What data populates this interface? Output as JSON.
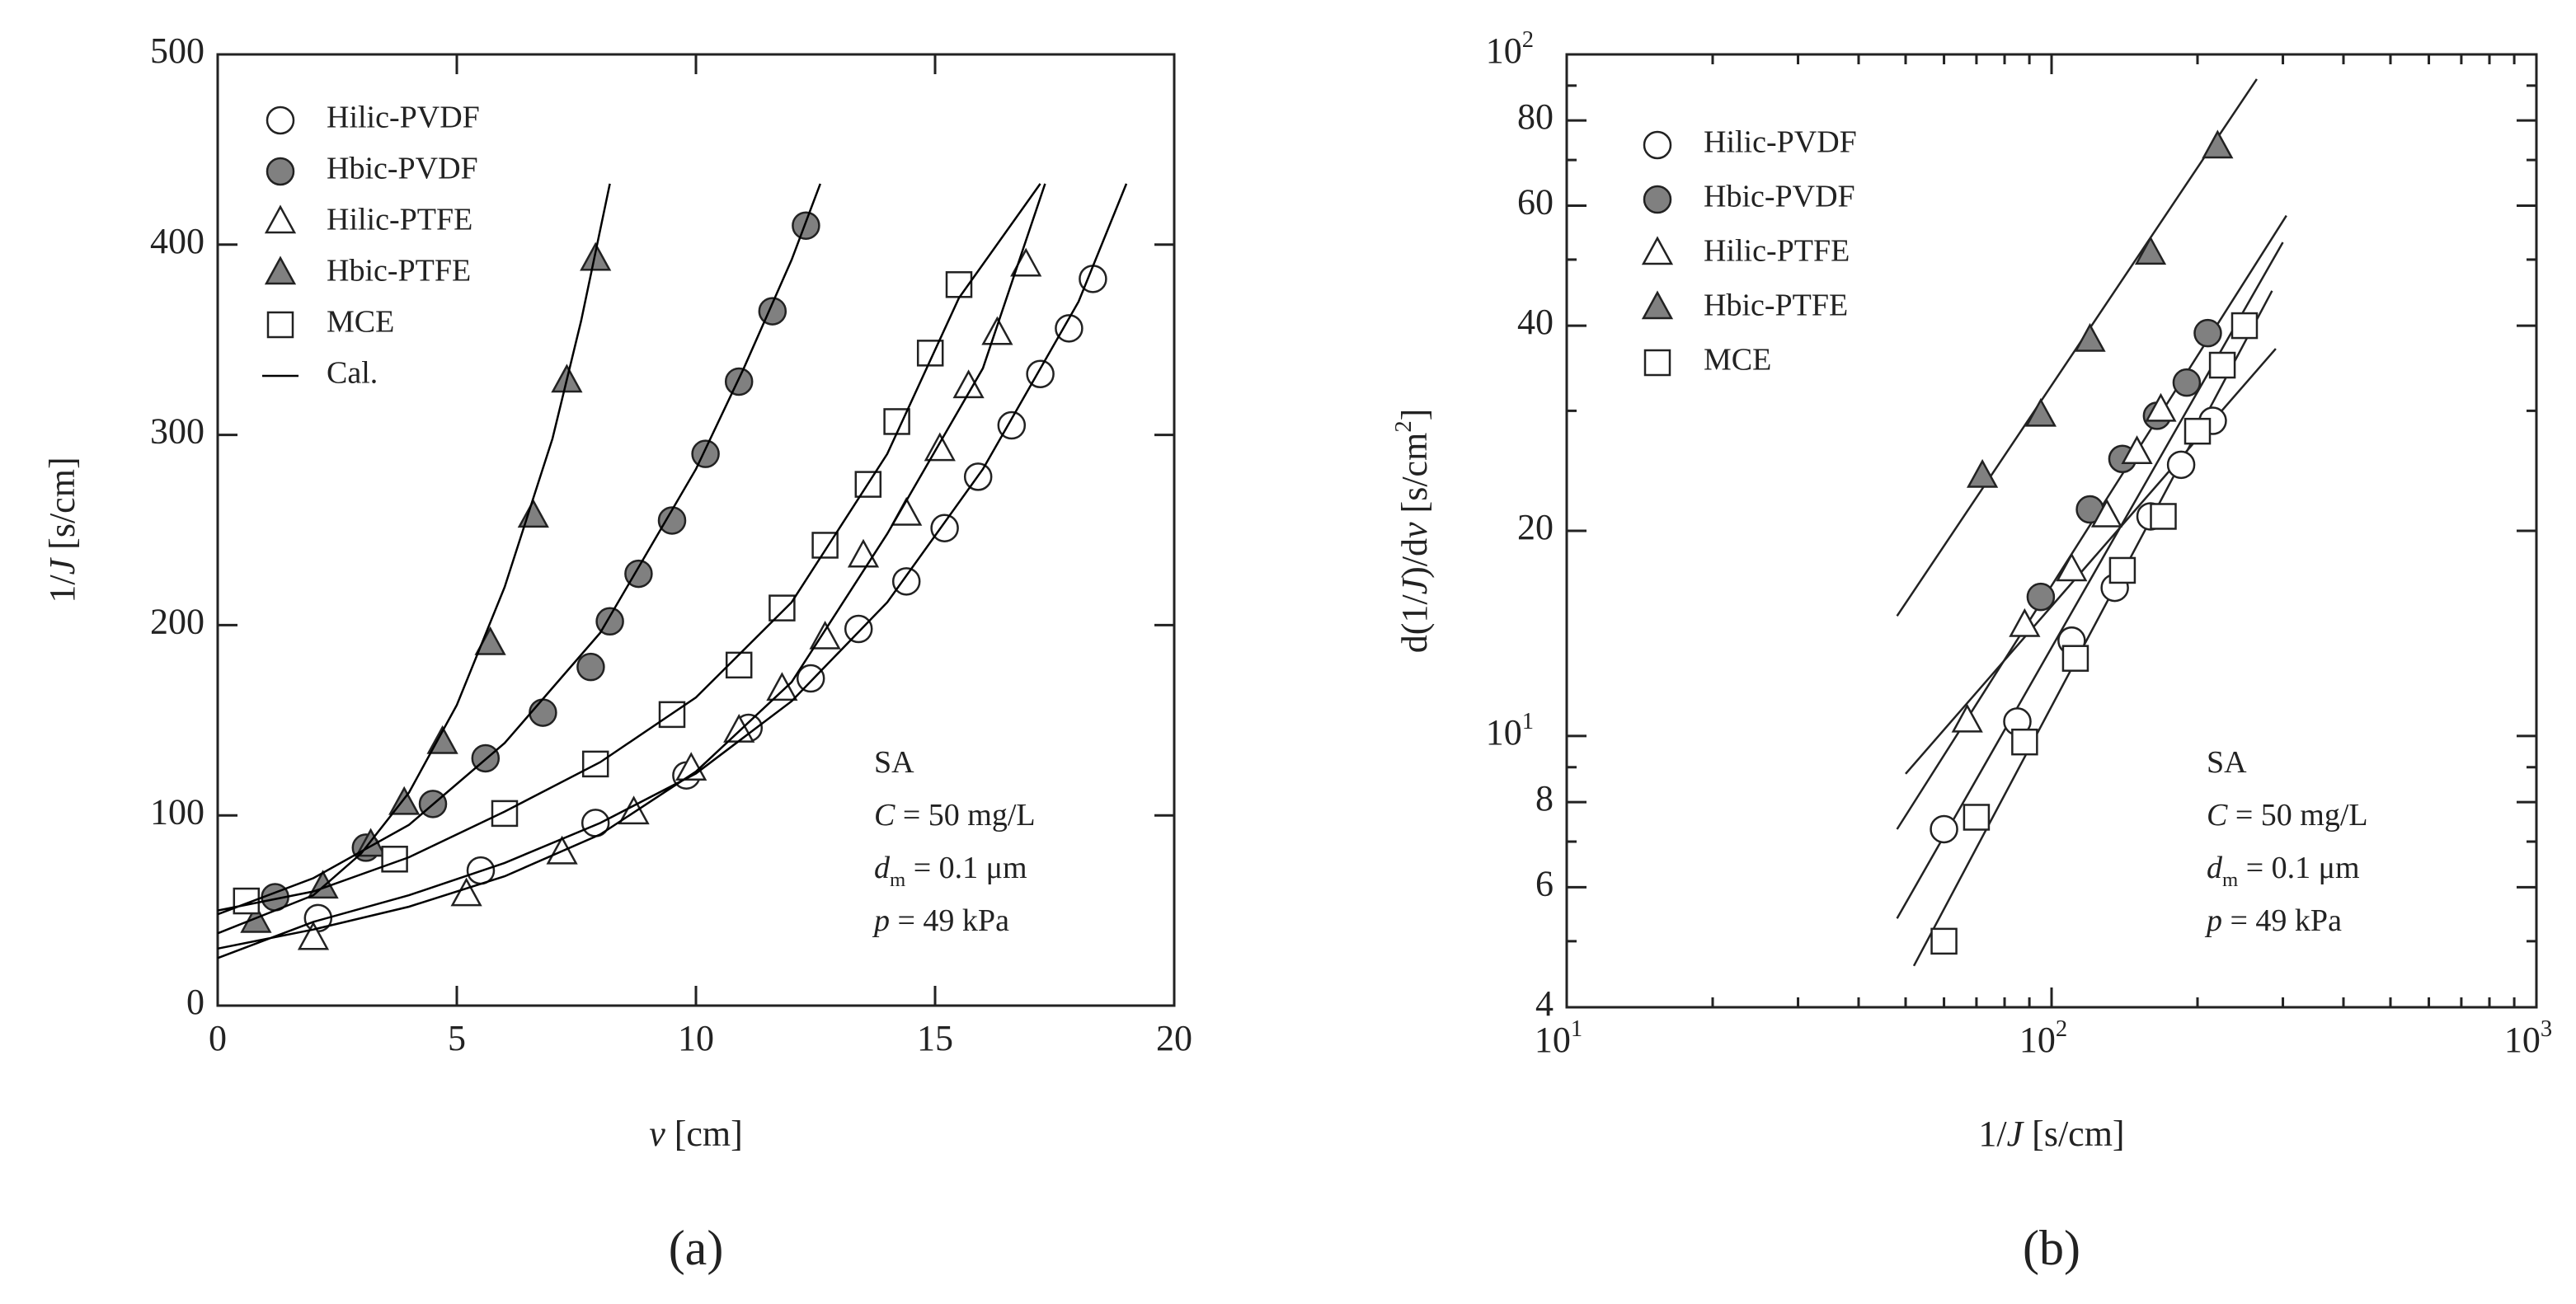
{
  "chart_data": [
    {
      "type": "scatter",
      "caption": "(a)",
      "xlabel": [
        {
          "text": "v",
          "italic": true
        },
        {
          "text": "  [cm]"
        }
      ],
      "ylabel": [
        {
          "text": "1/"
        },
        {
          "text": "J",
          "italic": true
        },
        {
          "text": "  [s/cm]"
        }
      ],
      "xlim": [
        0,
        20
      ],
      "ylim": [
        0,
        500
      ],
      "xticks": [
        0,
        5,
        10,
        15,
        20
      ],
      "yticks": [
        0,
        100,
        200,
        300,
        400,
        500
      ],
      "log": false,
      "legend": "upper left",
      "annotations": [
        [
          {
            "text": "SA"
          }
        ],
        [
          {
            "text": "C",
            "italic": true
          },
          {
            "text": " = 50 mg/L"
          }
        ],
        [
          {
            "text": "d",
            "italic": true
          },
          {
            "text": "m",
            "sub": true
          },
          {
            "text": " = 0.1 μm"
          }
        ],
        [
          {
            "text": "p",
            "italic": true
          },
          {
            "text": " = 49 kPa"
          }
        ]
      ],
      "series": [
        {
          "name": "Hilic-PVDF",
          "marker": "circle",
          "color": "#ffffff",
          "x": [
            2.1,
            5.5,
            7.9,
            9.8,
            11.1,
            12.4,
            13.4,
            14.4,
            15.2,
            15.9,
            16.6,
            17.2,
            17.8,
            18.3
          ],
          "values": [
            46,
            71,
            96,
            121,
            146,
            172,
            198,
            223,
            251,
            278,
            305,
            332,
            356,
            382
          ]
        },
        {
          "name": "Hbic-PVDF",
          "marker": "circle",
          "color": "#808080",
          "x": [
            1.2,
            3.1,
            4.5,
            5.6,
            6.8,
            7.8,
            8.2,
            8.8,
            9.5,
            10.2,
            10.9,
            11.6,
            12.3
          ],
          "values": [
            57,
            83,
            106,
            130,
            154,
            178,
            202,
            227,
            255,
            290,
            328,
            365,
            410
          ]
        },
        {
          "name": "Hilic-PTFE",
          "marker": "triangle",
          "color": "#ffffff",
          "x": [
            2.0,
            5.2,
            7.2,
            8.7,
            9.9,
            10.9,
            11.8,
            12.7,
            13.5,
            14.4,
            15.1,
            15.7,
            16.3,
            16.9
          ],
          "values": [
            35,
            58,
            80,
            101,
            124,
            144,
            166,
            193,
            236,
            258,
            292,
            325,
            353,
            389
          ]
        },
        {
          "name": "Hbic-PTFE",
          "marker": "triangle",
          "color": "#808080",
          "x": [
            0.8,
            2.2,
            3.2,
            3.9,
            4.7,
            5.7,
            6.6,
            7.3,
            7.9
          ],
          "values": [
            44,
            62,
            84,
            106,
            138,
            190,
            257,
            328,
            392
          ]
        },
        {
          "name": "MCE",
          "marker": "square",
          "color": "#ffffff",
          "x": [
            0.6,
            3.7,
            6.0,
            7.9,
            9.5,
            10.9,
            11.8,
            12.7,
            13.6,
            14.2,
            14.9,
            15.5
          ],
          "values": [
            55,
            77,
            101,
            127,
            153,
            179,
            209,
            242,
            274,
            307,
            343,
            379
          ]
        },
        {
          "name": "Cal.",
          "marker": "line",
          "color": "#000000",
          "x": [
            0,
            2,
            4,
            6,
            8,
            10,
            12,
            14,
            16,
            18,
            19,
            null,
            0,
            2,
            4,
            6,
            8,
            10,
            11,
            12,
            12.6,
            null,
            0,
            2,
            4,
            6,
            8,
            10,
            12,
            14,
            16,
            17.3,
            null,
            0,
            2,
            3,
            4,
            5,
            6,
            7,
            7.6,
            8.2,
            null,
            0,
            2,
            4,
            6,
            8,
            10,
            12,
            14,
            15.5,
            17.2
          ],
          "values": [
            25,
            44,
            58,
            75,
            96,
            122,
            160,
            212,
            282,
            370,
            432,
            null,
            48,
            67,
            95,
            138,
            196,
            282,
            335,
            392,
            432,
            null,
            30,
            40,
            52,
            68,
            90,
            123,
            170,
            248,
            335,
            432,
            null,
            38,
            58,
            80,
            112,
            158,
            220,
            298,
            360,
            432,
            null,
            50,
            60,
            78,
            102,
            128,
            162,
            212,
            290,
            372,
            432
          ]
        }
      ]
    },
    {
      "type": "scatter",
      "caption": "(b)",
      "xlabel": [
        {
          "text": "1/"
        },
        {
          "text": "J",
          "italic": true
        },
        {
          "text": "  [s/cm]"
        }
      ],
      "ylabel": [
        {
          "text": "d(1/"
        },
        {
          "text": "J",
          "italic": true
        },
        {
          "text": ")/d"
        },
        {
          "text": "v",
          "italic": true
        },
        {
          "text": "  [s/cm"
        },
        {
          "text": "2",
          "sup": true
        },
        {
          "text": "]"
        }
      ],
      "xlim": [
        10,
        1000
      ],
      "ylim": [
        4,
        100
      ],
      "log": true,
      "legend": "upper left",
      "xticks": [
        {
          "value": 10,
          "label": "10",
          "exponent": "1"
        },
        {
          "value": 100,
          "label": "10",
          "exponent": "2"
        },
        {
          "value": 1000,
          "label": "10",
          "exponent": "3"
        }
      ],
      "xminor": [
        20,
        30,
        40,
        50,
        60,
        70,
        80,
        90,
        200,
        300,
        400,
        500,
        600,
        700,
        800,
        900
      ],
      "yticks": [
        4,
        6,
        8,
        {
          "value": 10,
          "label": "10",
          "exponent": "1"
        },
        20,
        40,
        60,
        80,
        {
          "value": 100,
          "label": "10",
          "exponent": "2"
        }
      ],
      "yminor": [
        5,
        7,
        9,
        30,
        50,
        70,
        90
      ],
      "annotations": [
        [
          {
            "text": "SA"
          }
        ],
        [
          {
            "text": "C",
            "italic": true
          },
          {
            "text": " = 50 mg/L"
          }
        ],
        [
          {
            "text": "d",
            "italic": true
          },
          {
            "text": "m",
            "sub": true
          },
          {
            "text": " = 0.1 μm"
          }
        ],
        [
          {
            "text": "p",
            "italic": true
          },
          {
            "text": " = 49 kPa"
          }
        ]
      ],
      "series": [
        {
          "name": "Hilic-PVDF",
          "marker": "circle",
          "color": "#ffffff",
          "x": [
            60,
            85,
            110,
            135,
            160,
            185,
            215
          ],
          "values": [
            7.3,
            10.5,
            13.8,
            16.5,
            21,
            25,
            29
          ]
        },
        {
          "name": "Hbic-PVDF",
          "marker": "circle",
          "color": "#808080",
          "x": [
            95,
            120,
            140,
            165,
            190,
            210
          ],
          "values": [
            16,
            21.5,
            25.5,
            29.5,
            33,
            39
          ]
        },
        {
          "name": "Hilic-PTFE",
          "marker": "triangle",
          "color": "#ffffff",
          "x": [
            67,
            88,
            110,
            130,
            150,
            168
          ],
          "values": [
            10.5,
            14.5,
            17.5,
            21,
            26,
            30
          ]
        },
        {
          "name": "Hbic-PTFE",
          "marker": "triangle",
          "color": "#808080",
          "x": [
            72,
            95,
            120,
            160,
            220
          ],
          "values": [
            24,
            29.5,
            38,
            51,
            73
          ]
        },
        {
          "name": "MCE",
          "marker": "square",
          "color": "#ffffff",
          "x": [
            60,
            70,
            88,
            112,
            140,
            170,
            200,
            225,
            250
          ],
          "values": [
            5,
            7.6,
            9.8,
            13,
            17.5,
            21,
            28,
            35,
            40
          ]
        }
      ],
      "fit_lines": [
        {
          "x": [
            48,
            265
          ],
          "values": [
            15,
            92
          ]
        },
        {
          "x": [
            50,
            290
          ],
          "values": [
            8.8,
            37
          ]
        },
        {
          "x": [
            48,
            305
          ],
          "values": [
            7.3,
            58
          ]
        },
        {
          "x": [
            48,
            300
          ],
          "values": [
            5.4,
            53
          ]
        },
        {
          "x": [
            52,
            285
          ],
          "values": [
            4.6,
            45
          ]
        }
      ]
    }
  ]
}
